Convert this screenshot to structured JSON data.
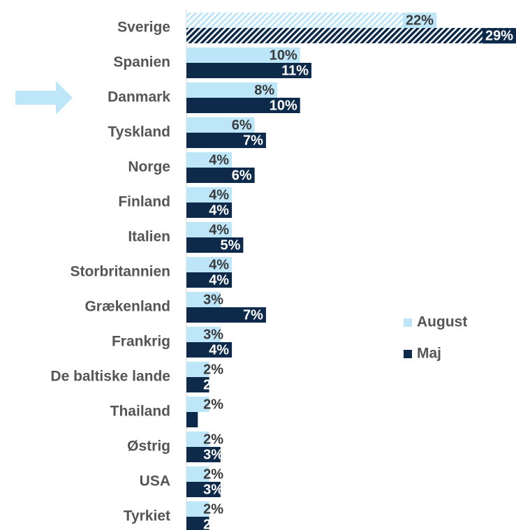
{
  "chart_data": {
    "type": "hbar",
    "categories": [
      "Sverige",
      "Spanien",
      "Danmark",
      "Tyskland",
      "Norge",
      "Finland",
      "Italien",
      "Storbritannien",
      "Grækenland",
      "Frankrig",
      "De baltiske lande",
      "Thailand",
      "Østrig",
      "USA",
      "Tyrkiet"
    ],
    "series": [
      {
        "name": "August",
        "color": "#bde6f9",
        "values": [
          22,
          10,
          8,
          6,
          4,
          4,
          4,
          4,
          3,
          3,
          2,
          2,
          2,
          2,
          2
        ],
        "value_labels": [
          "22%",
          "10%",
          "8%",
          "6%",
          "4%",
          "4%",
          "4%",
          "4%",
          "3%",
          "3%",
          "2%",
          "2%",
          "2%",
          "2%",
          "2%"
        ]
      },
      {
        "name": "Maj",
        "color": "#0d2a4a",
        "values": [
          29,
          11,
          10,
          7,
          6,
          4,
          5,
          4,
          7,
          4,
          2,
          1,
          3,
          3,
          2
        ],
        "value_labels": [
          "29%",
          "11%",
          "10%",
          "7%",
          "6%",
          "4%",
          "5%",
          "4%",
          "7%",
          "4%",
          "2%",
          "1%",
          "3%",
          "3%",
          "2%"
        ]
      }
    ],
    "xlim": [
      0,
      29
    ],
    "hatched_category": "Sverige",
    "arrow_category": "Danmark",
    "legend": "right"
  }
}
